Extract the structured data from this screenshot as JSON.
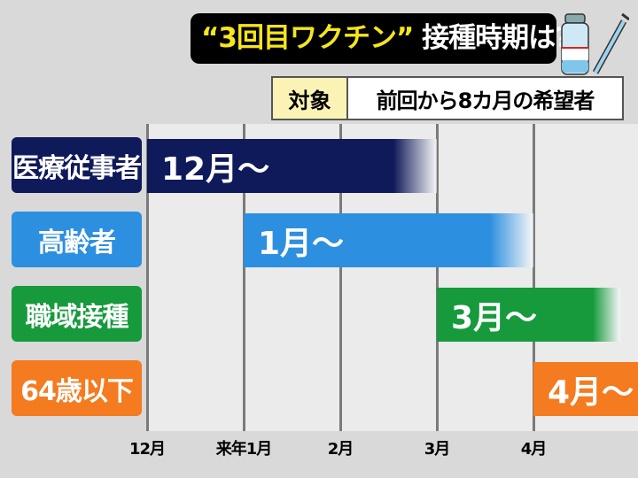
{
  "header": {
    "title_quoted": "“3回目ワクチン”",
    "title_rest": " 接種時期は?",
    "icon": "vaccine-vial-syringe-icon"
  },
  "target": {
    "label": "対象",
    "value": "前回から8カ月の希望者"
  },
  "chart_data": {
    "type": "bar",
    "orientation": "horizontal-timeline",
    "x_ticks": [
      "12月",
      "来年1月",
      "2月",
      "3月",
      "4月"
    ],
    "x_unit": "months from 12月 (12月=0)",
    "xlim": [
      0,
      5.08
    ],
    "grid": true,
    "series": [
      {
        "category": "医療従事者",
        "label": "12月～",
        "start": 0,
        "end": 3,
        "color": "#0f1a5a"
      },
      {
        "category": "高齢者",
        "label": "1月～",
        "start": 1,
        "end": 4,
        "color": "#2d8fe0"
      },
      {
        "category": "職域接種",
        "label": "3月～",
        "start": 3,
        "end": 4.9,
        "color": "#169a3c"
      },
      {
        "category": "64歳以下",
        "label": "4月～",
        "start": 4,
        "end": 5.08,
        "color": "#f47b20"
      }
    ]
  }
}
